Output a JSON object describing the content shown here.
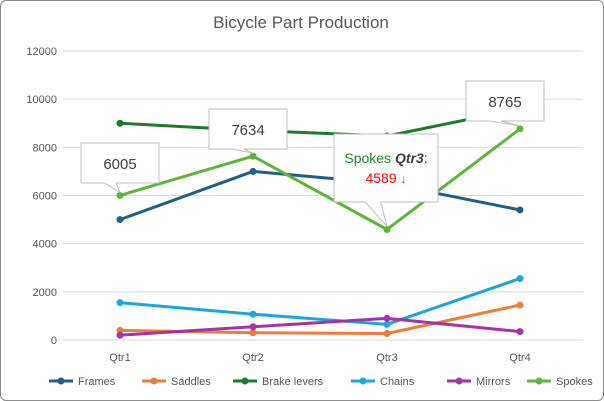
{
  "chart_data": {
    "type": "line",
    "title": "Bicycle Part Production",
    "categories": [
      "Qtr1",
      "Qtr2",
      "Qtr3",
      "Qtr4"
    ],
    "ylim": [
      0,
      12000
    ],
    "yticks": [
      "0",
      "2000",
      "4000",
      "6000",
      "8000",
      "10000",
      "12000"
    ],
    "grid": true,
    "legend": "bottom",
    "series": [
      {
        "name": "Frames",
        "color": "#1f5f86",
        "values": [
          5000,
          7000,
          6500,
          5400
        ]
      },
      {
        "name": "Saddles",
        "color": "#f07c3a",
        "values": [
          400,
          300,
          270,
          1450
        ]
      },
      {
        "name": "Brake levers",
        "color": "#1e7a2c",
        "values": [
          9000,
          8700,
          8470,
          9600
        ]
      },
      {
        "name": "Chains",
        "color": "#1aa7e0",
        "values": [
          1550,
          1070,
          650,
          2550
        ]
      },
      {
        "name": "Mirrors",
        "color": "#a233a8",
        "values": [
          200,
          550,
          900,
          350
        ]
      },
      {
        "name": "Spokes",
        "color": "#5db53a",
        "values": [
          6005,
          7634,
          4589,
          8765
        ]
      }
    ],
    "data_labels": [
      {
        "series": "Spokes",
        "category": "Qtr1",
        "text": "6005"
      },
      {
        "series": "Spokes",
        "category": "Qtr2",
        "text": "7634"
      },
      {
        "series": "Spokes",
        "category": "Qtr4",
        "text": "8765"
      }
    ],
    "callout": {
      "series_label": "Spokes",
      "category_label": "Qtr3",
      "suffix": ":",
      "value": "4589",
      "arrow": "↓",
      "value_color": "#ff0000",
      "label_color": "#1e8a2c"
    }
  }
}
